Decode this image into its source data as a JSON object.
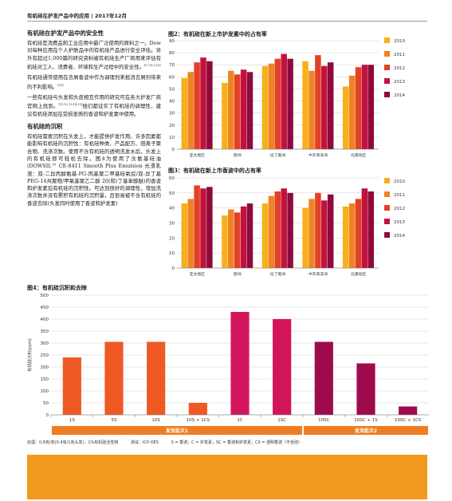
{
  "header": {
    "title": "有机硅在护发产品中的应用 | 2017年12月"
  },
  "text": {
    "section1_title": "有机硅在护发产品中的安全性",
    "p1": "有机硅是消费品和工业应用中最广泛使用的原料之一。Dow对每种应用在个人护肤品中的有机硅产品进行安全评估。另外有超过1,000篇的研究资料被有机硅生产厂商用来评估有机硅对工人、消费者、环境和生产过程中的安全性。",
    "p1_ref": "[5,7,8,9,10]",
    "p2": "有机硅通常使用在去屑香波中作为调理剂来抵消去屑剂带来的不利影响。",
    "p2_ref": "[10]",
    "p3a": "一些有机硅与头发和头皮相互作用的研究可在各大护发厂商官网上找到。",
    "p3_ref": "[11,12,13,14,15]",
    "p3b": "他们都证实了有机硅的调理性，建议有机硅添加在受损发质的香波和护发素中使用。",
    "section2_title": "有机硅的沉积",
    "p4": "有机硅需要沉积在头发上，才能提供护发作用。许多因素都能影响有机硅的沉积性：有机硅种类、产品配方、阳离子聚合物、洗涤次数。使用不含有机硅的透明洗发水后，头发上的有机硅即可轻松去除。图4为使用了含氨基硅油(DOWSIL™ CE-8411 Smooth Plus Emulsion 光滑乳液：双-二异丙醇氨基-PG-丙基聚二甲基硅氧烷/双-异丁基PEG-14共聚物/甲氧基聚乙二醇 20(和)丁基苯醇醚)的香波和护发素后有机硅的沉积性。可达到很好的调理性，增加洗涤次数并没有累积有机硅的沉积量，且很易被不含有机硅的香波去除(头发同时使用了香波和护发素)"
  },
  "fig2": {
    "title": "图2：有机硅在新上市护发素中的占有率",
    "chart_data": {
      "type": "bar",
      "categories": [
        "亚太地区",
        "欧洲",
        "拉丁美洲",
        "中东和非洲",
        "北美地区"
      ],
      "series": [
        {
          "name": "2010",
          "values": [
            59,
            55,
            69,
            73,
            52
          ]
        },
        {
          "name": "2011",
          "values": [
            64,
            65,
            71,
            65,
            61
          ]
        },
        {
          "name": "2012",
          "values": [
            72,
            62,
            75,
            78,
            68
          ]
        },
        {
          "name": "2013",
          "values": [
            76,
            66,
            79,
            69,
            70
          ]
        },
        {
          "name": "2014",
          "values": [
            73,
            64,
            75,
            72,
            70
          ]
        }
      ],
      "ylim": [
        0,
        90
      ],
      "yticks": [
        0,
        10,
        20,
        30,
        40,
        50,
        60,
        70,
        80,
        90
      ],
      "colors": [
        "#f7b01c",
        "#ef8324",
        "#e14126",
        "#c1123f",
        "#8f0a3c"
      ],
      "legend": "right"
    }
  },
  "fig3": {
    "title": "图3：有机硅在新上市香波中的占有率",
    "chart_data": {
      "type": "bar",
      "categories": [
        "亚太地区",
        "欧洲",
        "拉丁美洲",
        "中东和非洲",
        "北美地区"
      ],
      "series": [
        {
          "name": "2010",
          "values": [
            43,
            35,
            43,
            40,
            41
          ]
        },
        {
          "name": "2011",
          "values": [
            46,
            39,
            48,
            46,
            43
          ]
        },
        {
          "name": "2012",
          "values": [
            55,
            37,
            51,
            50,
            46
          ]
        },
        {
          "name": "2013",
          "values": [
            53,
            41,
            53,
            45,
            53
          ]
        },
        {
          "name": "2014",
          "values": [
            54,
            43,
            50,
            49,
            51
          ]
        }
      ],
      "ylim": [
        0,
        60
      ],
      "yticks": [
        0,
        10,
        20,
        30,
        40,
        50,
        60
      ],
      "colors": [
        "#f7b01c",
        "#ef8324",
        "#e14126",
        "#c1123f",
        "#8f0a3c"
      ],
      "legend": "right"
    }
  },
  "fig4": {
    "title": "图4：有机硅沉积和去除",
    "chart_data": {
      "type": "bar",
      "categories": [
        "1S",
        "5S",
        "10S",
        "10S + 1CS",
        "1C",
        "1SC",
        "10SC",
        "10SC + 1S",
        "10SC + 1CS"
      ],
      "values": [
        240,
        305,
        305,
        50,
        430,
        400,
        305,
        215,
        35
      ],
      "colors": [
        "#ef5a24",
        "#ef5a24",
        "#ef5a24",
        "#ef5a24",
        "#d4145a",
        "#d4145a",
        "#9e0b4d",
        "#9e0b4d",
        "#9e0b4d"
      ],
      "ylabel": "有机硅沉积(ppm)",
      "ylim": [
        0,
        500
      ],
      "yticks": [
        0,
        50,
        100,
        150,
        200,
        250,
        300,
        350,
        400,
        450,
        500
      ],
      "groups": [
        {
          "label": "发泡批次1",
          "color": "#ef7d22"
        },
        {
          "label": "发泡批次2",
          "color": "#ef7d22"
        }
      ]
    }
  },
  "footer": {
    "treatment": "处理：0.8克/克(0.4克/1克头发)，1%有机硅活性物",
    "test": "测试：ICP-OES",
    "legend": "S = 香波；C = 护发素；SC = 香波和护发素；CS = 透明香波（不含硅）"
  }
}
